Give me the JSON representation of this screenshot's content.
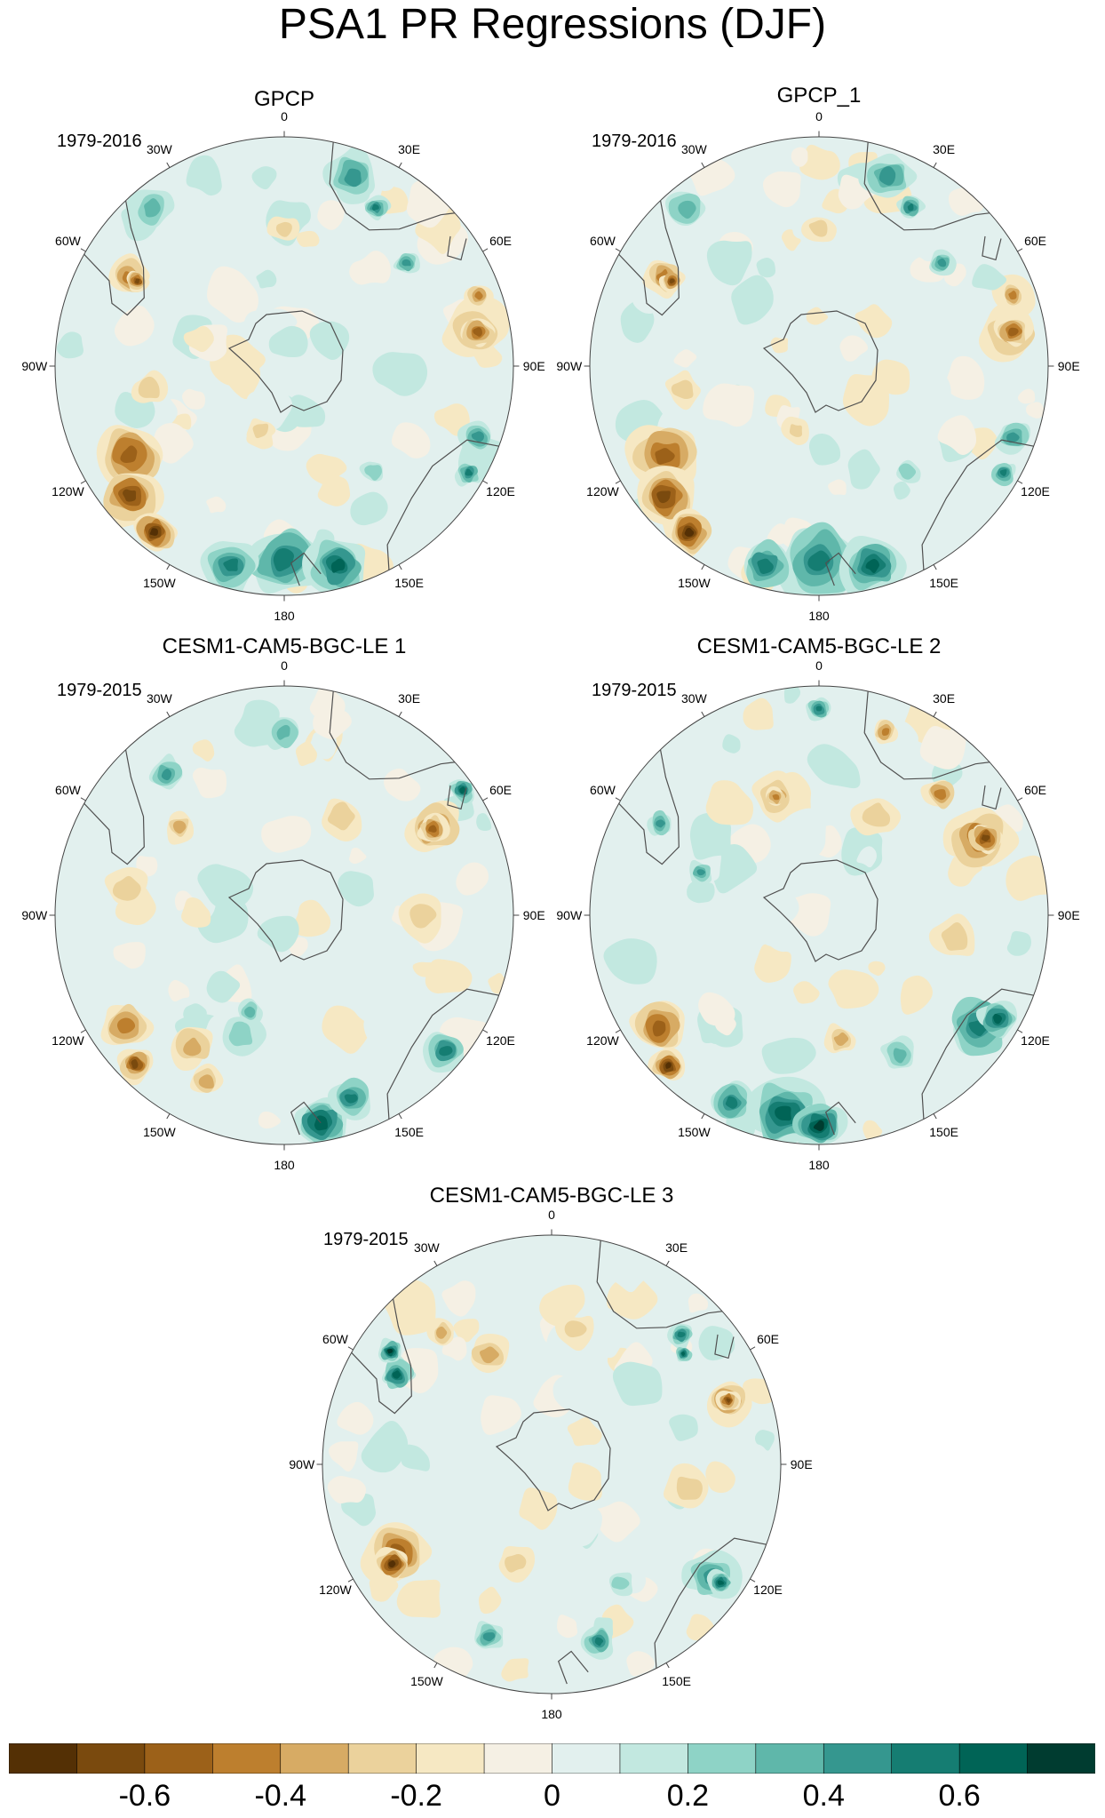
{
  "figure": {
    "title": "PSA1 PR Regressions (DJF)"
  },
  "longitude_labels": [
    "0",
    "30E",
    "60E",
    "90E",
    "120E",
    "150E",
    "180",
    "150W",
    "120W",
    "90W",
    "60W",
    "30W"
  ],
  "panels": [
    {
      "title": "GPCP",
      "period": "1979-2016"
    },
    {
      "title": "GPCP_1",
      "period": "1979-2016"
    },
    {
      "title": "CESM1-CAM5-BGC-LE 1",
      "period": "1979-2015"
    },
    {
      "title": "CESM1-CAM5-BGC-LE 2",
      "period": "1979-2015"
    },
    {
      "title": "CESM1-CAM5-BGC-LE 3",
      "period": "1979-2015"
    }
  ],
  "colorbar": {
    "colors": [
      "#543005",
      "#7a4a0e",
      "#9c6119",
      "#bd7f2e",
      "#d7ab64",
      "#ebd29c",
      "#f6e8c3",
      "#f5f0e4",
      "#e2f0ee",
      "#c2e8e0",
      "#8ed3c6",
      "#5fb7aa",
      "#35978f",
      "#157d72",
      "#006456",
      "#003c30"
    ],
    "tick_labels": [
      "-0.6",
      "-0.4",
      "-0.2",
      "0",
      "0.2",
      "0.4",
      "0.6"
    ]
  },
  "colors": {
    "coastline": "#505050",
    "background": "#ffffff"
  }
}
